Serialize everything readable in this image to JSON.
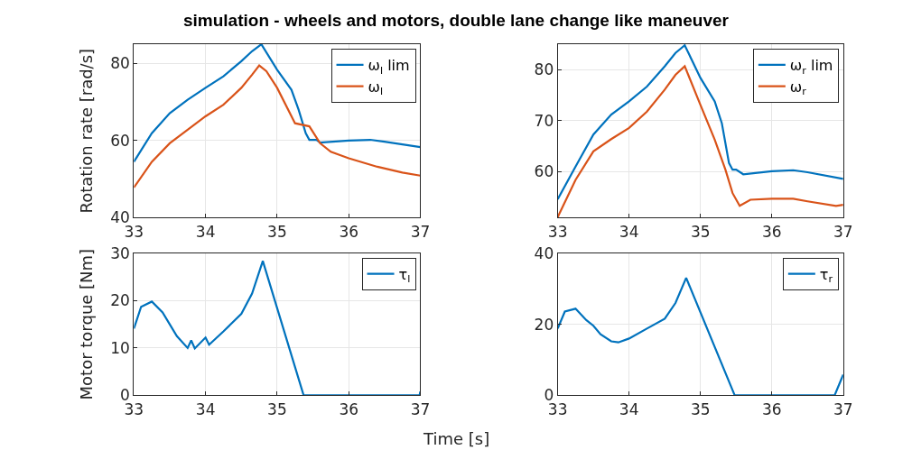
{
  "chart_data": [
    {
      "type": "line",
      "title": "simulation - wheels and motors, double lane change like maneuver",
      "ylabel": "Rotation rate [rad/s]",
      "xlim": [
        33,
        37
      ],
      "xticks": [
        33,
        34,
        35,
        36,
        37
      ],
      "ylim": [
        40,
        85
      ],
      "yticks": [
        40,
        60,
        80
      ],
      "grid": true,
      "legend": "top right",
      "series": [
        {
          "name": "ω$_{l}$ lim",
          "color": "#0072bd",
          "x": [
            33,
            33.25,
            33.5,
            33.75,
            34,
            34.25,
            34.5,
            34.65,
            34.78,
            35,
            35.2,
            35.3,
            35.4,
            35.45,
            35.55,
            35.6,
            36,
            36.3,
            36.5,
            37
          ],
          "values": [
            54.5,
            61.9,
            67.1,
            70.6,
            73.7,
            76.7,
            80.6,
            83.2,
            85,
            78.4,
            73.2,
            68,
            61.9,
            60.2,
            60.2,
            59.5,
            60,
            60.2,
            59.7,
            58.3
          ]
        },
        {
          "name": "ω$_{l}$",
          "color": "#d95319",
          "x": [
            33,
            33.25,
            33.5,
            33.75,
            34,
            34.25,
            34.5,
            34.65,
            34.75,
            34.85,
            35,
            35.25,
            35.45,
            35.6,
            35.75,
            36,
            36.4,
            36.75,
            37
          ],
          "values": [
            47.8,
            54.5,
            59.3,
            62.8,
            66.3,
            69.3,
            73.7,
            77.1,
            79.5,
            78,
            73.7,
            64.5,
            63.7,
            59.3,
            57.1,
            55.4,
            53.2,
            51.7,
            50.9
          ]
        }
      ]
    },
    {
      "type": "line",
      "xlim": [
        33,
        37
      ],
      "xticks": [
        33,
        34,
        35,
        36,
        37
      ],
      "ylim": [
        51,
        85
      ],
      "yticks": [
        60,
        70,
        80
      ],
      "grid": true,
      "legend": "top right",
      "series": [
        {
          "name": "ω$_{r}$ lim",
          "color": "#0072bd",
          "x": [
            33,
            33.25,
            33.5,
            33.75,
            34,
            34.25,
            34.5,
            34.65,
            34.78,
            35,
            35.2,
            35.3,
            35.4,
            35.45,
            35.5,
            35.6,
            36,
            36.3,
            36.5,
            37
          ],
          "values": [
            54.6,
            61,
            67.3,
            71.2,
            73.8,
            76.7,
            80.7,
            83.3,
            84.8,
            78.4,
            73.8,
            69.5,
            61.7,
            60.4,
            60.4,
            59.5,
            60.1,
            60.3,
            59.9,
            58.6
          ]
        },
        {
          "name": "ω$_{r}$",
          "color": "#d95319",
          "x": [
            33,
            33.25,
            33.5,
            33.75,
            34,
            34.25,
            34.5,
            34.65,
            34.78,
            35,
            35.2,
            35.35,
            35.45,
            35.55,
            35.7,
            36,
            36.3,
            36.5,
            36.9,
            37
          ],
          "values": [
            51.1,
            58.4,
            64,
            66.4,
            68.6,
            71.8,
            76.1,
            79,
            80.7,
            73.1,
            66.3,
            60.4,
            55.8,
            53.3,
            54.5,
            54.7,
            54.7,
            54.2,
            53.3,
            53.5
          ]
        }
      ]
    },
    {
      "type": "line",
      "ylabel": "Motor torque [Nm]",
      "xlabel": "Time [s]",
      "xlim": [
        33,
        37
      ],
      "xticks": [
        33,
        34,
        35,
        36,
        37
      ],
      "ylim": [
        0,
        30
      ],
      "yticks": [
        0,
        10,
        20,
        30
      ],
      "grid": true,
      "legend": "top right",
      "series": [
        {
          "name": "τ$_{l}$",
          "color": "#0072bd",
          "x": [
            33,
            33.1,
            33.25,
            33.4,
            33.5,
            33.6,
            33.75,
            33.8,
            33.85,
            34,
            34.05,
            34.25,
            34.5,
            34.65,
            34.8,
            35.37,
            36.99,
            37
          ],
          "values": [
            14.1,
            18.7,
            19.8,
            17.5,
            15,
            12.5,
            10,
            11.6,
            9.9,
            12.2,
            10.7,
            13.5,
            17.2,
            21.5,
            28.4,
            0,
            0,
            0.8
          ]
        }
      ]
    },
    {
      "type": "line",
      "xlim": [
        33,
        37
      ],
      "xticks": [
        33,
        34,
        35,
        36,
        37
      ],
      "ylim": [
        0,
        40
      ],
      "yticks": [
        0,
        20,
        40
      ],
      "grid": true,
      "legend": "top right",
      "series": [
        {
          "name": "τ$_{r}$",
          "color": "#0072bd",
          "x": [
            33,
            33.1,
            33.25,
            33.4,
            33.5,
            33.6,
            33.75,
            33.85,
            34,
            34.25,
            34.5,
            34.65,
            34.8,
            35.48,
            36.88,
            37
          ],
          "values": [
            18.8,
            23.6,
            24.4,
            21.2,
            19.6,
            17.2,
            15.2,
            14.9,
            16,
            18.8,
            21.6,
            26,
            33.1,
            0,
            0,
            5.8
          ]
        }
      ]
    }
  ]
}
